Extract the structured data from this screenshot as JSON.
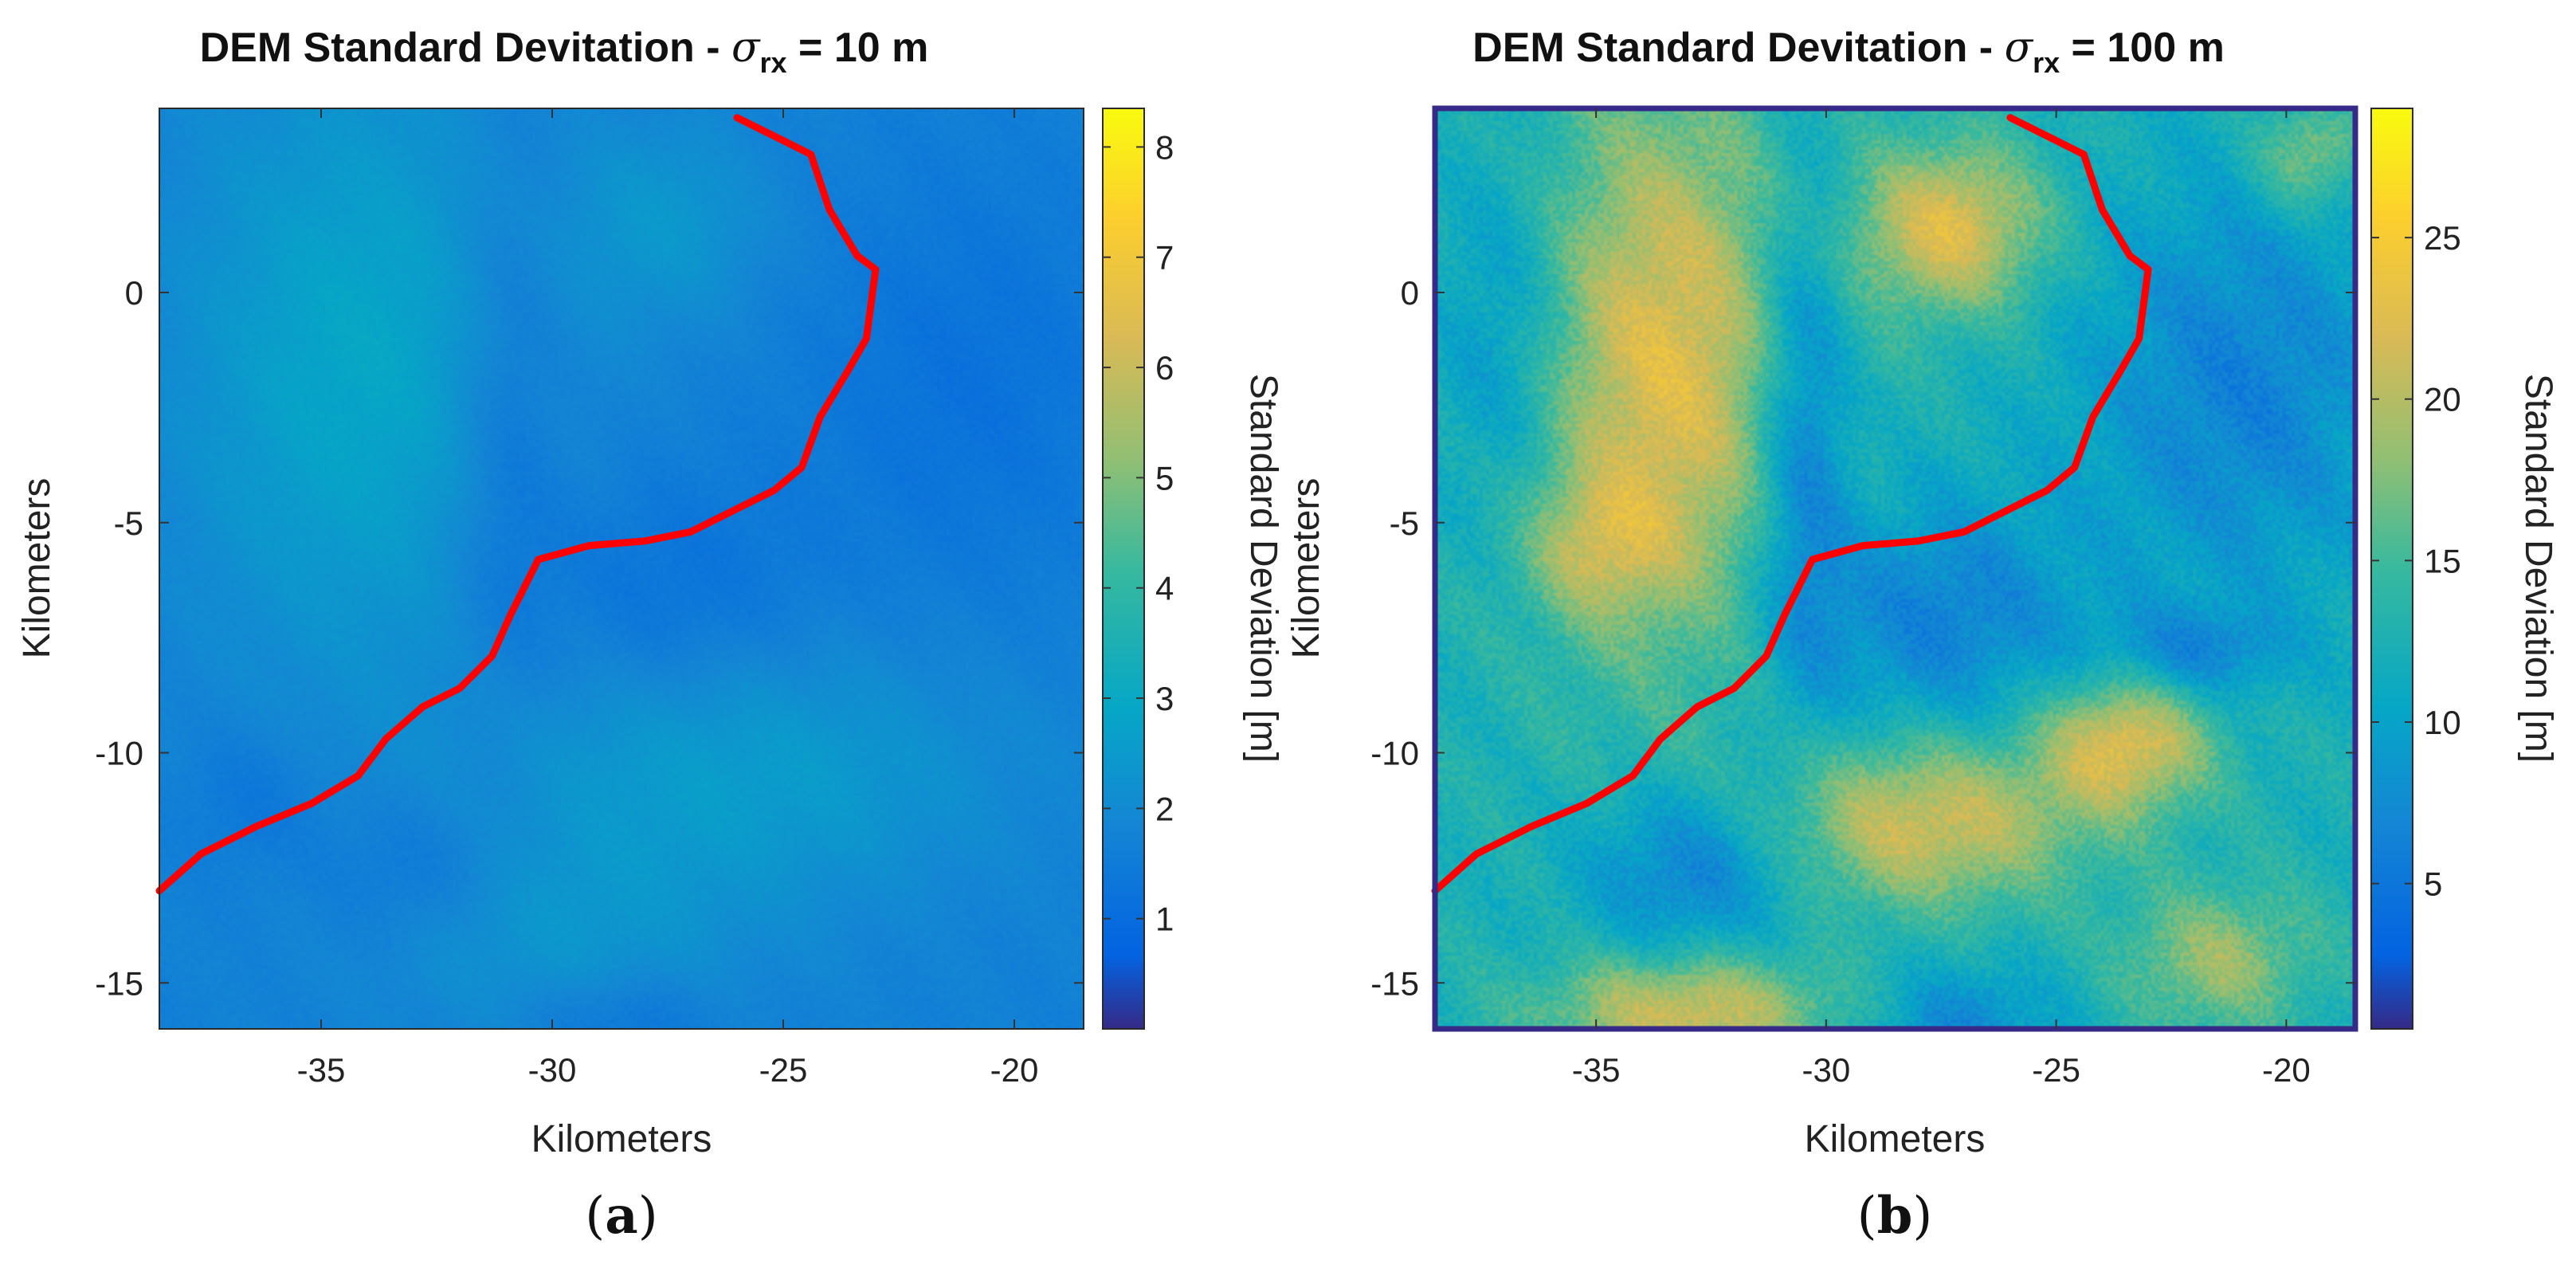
{
  "chart_data": [
    {
      "type": "heatmap",
      "panel_label": {
        "open": "(",
        "letter": "a",
        "close": ")"
      },
      "title": {
        "prefix": "DEM Standard Devitation - ",
        "symbol": "σ",
        "subscript": "rx",
        "suffix": " = 10 m"
      },
      "xlabel": "Kilometers",
      "ylabel": "Kilometers",
      "colorbar_label": "Standard Deviation [m]",
      "xlim": [
        -38.5,
        -18.5
      ],
      "ylim": [
        -16,
        4
      ],
      "xticks": [
        -35,
        -30,
        -25,
        -20
      ],
      "xtick_labels": [
        "-35",
        "-30",
        "-25",
        "-20"
      ],
      "yticks": [
        0,
        -5,
        -10,
        -15
      ],
      "ytick_labels": [
        "0",
        "-5",
        "-10",
        "-15"
      ],
      "clim": [
        0,
        8.35
      ],
      "cticks": [
        1,
        2,
        3,
        4,
        5,
        6,
        7,
        8
      ],
      "ctick_labels": [
        "1",
        "2",
        "3",
        "4",
        "5",
        "6",
        "7",
        "8"
      ],
      "colormap": "parula",
      "trace_color": "#ff0000",
      "path_label": "traverse path",
      "path_km": [
        [
          -38.5,
          -13
        ],
        [
          -37.6,
          -12.2
        ],
        [
          -36.4,
          -11.6
        ],
        [
          -35.2,
          -11.1
        ],
        [
          -34.2,
          -10.5
        ],
        [
          -33.6,
          -9.7
        ],
        [
          -32.8,
          -9.0
        ],
        [
          -32.0,
          -8.6
        ],
        [
          -31.3,
          -7.9
        ],
        [
          -30.9,
          -7.0
        ],
        [
          -30.3,
          -5.8
        ],
        [
          -29.2,
          -5.5
        ],
        [
          -28.0,
          -5.4
        ],
        [
          -27.0,
          -5.2
        ],
        [
          -26.0,
          -4.7
        ],
        [
          -25.2,
          -4.3
        ],
        [
          -24.6,
          -3.8
        ],
        [
          -24.2,
          -2.7
        ],
        [
          -23.6,
          -1.7
        ],
        [
          -23.2,
          -1.0
        ],
        [
          -23.0,
          0.5
        ],
        [
          -23.4,
          0.8
        ],
        [
          -24.0,
          1.8
        ],
        [
          -24.4,
          3.0
        ],
        [
          -25.0,
          3.3
        ],
        [
          -26.0,
          3.8
        ]
      ],
      "field": {
        "base": 1.7,
        "noise": 0.12,
        "highs": [
          [
            -34.2,
            -1.6,
            3.8,
            6.5,
            1.2
          ],
          [
            -27.5,
            1.5,
            2.2,
            2.2,
            0.7
          ],
          [
            -26.0,
            -10.5,
            5.5,
            2.8,
            0.9
          ],
          [
            -30.0,
            -14.0,
            4.0,
            2.2,
            0.6
          ]
        ],
        "lows": [
          [
            -31.0,
            -3.0,
            1.2,
            6.0,
            0.6
          ],
          [
            -27.5,
            -6.5,
            3.0,
            2.5,
            0.5
          ],
          [
            -21.0,
            -2.0,
            3.5,
            4.5,
            0.5
          ],
          [
            -33.0,
            -12.6,
            2.0,
            1.6,
            0.5
          ],
          [
            -28.5,
            -15.8,
            2.0,
            1.0,
            0.5
          ],
          [
            -36.5,
            -11.0,
            1.5,
            1.5,
            0.4
          ]
        ]
      }
    },
    {
      "type": "heatmap",
      "panel_label": {
        "open": "(",
        "letter": "b",
        "close": ")"
      },
      "title": {
        "prefix": "DEM Standard Devitation - ",
        "symbol": "σ",
        "subscript": "rx",
        "suffix": " = 100 m"
      },
      "xlabel": "Kilometers",
      "ylabel": "Kilometers",
      "colorbar_label": "Standard Deviation [m]",
      "xlim": [
        -38.5,
        -18.5
      ],
      "ylim": [
        -16,
        4
      ],
      "xticks": [
        -35,
        -30,
        -25,
        -20
      ],
      "xtick_labels": [
        "-35",
        "-30",
        "-25",
        "-20"
      ],
      "yticks": [
        0,
        -5,
        -10,
        -15
      ],
      "ytick_labels": [
        "0",
        "-5",
        "-10",
        "-15"
      ],
      "clim": [
        0.5,
        29
      ],
      "cticks": [
        5,
        10,
        15,
        20,
        25
      ],
      "ctick_labels": [
        "5",
        "10",
        "15",
        "20",
        "25"
      ],
      "colormap": "parula",
      "trace_color": "#ff0000",
      "path_label": "traverse path",
      "path_km": [
        [
          -38.5,
          -13
        ],
        [
          -37.6,
          -12.2
        ],
        [
          -36.4,
          -11.6
        ],
        [
          -35.2,
          -11.1
        ],
        [
          -34.2,
          -10.5
        ],
        [
          -33.6,
          -9.7
        ],
        [
          -32.8,
          -9.0
        ],
        [
          -32.0,
          -8.6
        ],
        [
          -31.3,
          -7.9
        ],
        [
          -30.9,
          -7.0
        ],
        [
          -30.3,
          -5.8
        ],
        [
          -29.2,
          -5.5
        ],
        [
          -28.0,
          -5.4
        ],
        [
          -27.0,
          -5.2
        ],
        [
          -26.0,
          -4.7
        ],
        [
          -25.2,
          -4.3
        ],
        [
          -24.6,
          -3.8
        ],
        [
          -24.2,
          -2.7
        ],
        [
          -23.6,
          -1.7
        ],
        [
          -23.2,
          -1.0
        ],
        [
          -23.0,
          0.5
        ],
        [
          -23.4,
          0.8
        ],
        [
          -24.0,
          1.8
        ],
        [
          -24.4,
          3.0
        ],
        [
          -25.0,
          3.3
        ],
        [
          -26.0,
          3.8
        ]
      ],
      "field": {
        "base": 12.5,
        "noise": 1.6,
        "highs": [
          [
            -33.5,
            -1.6,
            2.8,
            6.0,
            10.0
          ],
          [
            -27.3,
            1.4,
            2.0,
            1.8,
            10.0
          ],
          [
            -27.8,
            -11.5,
            3.2,
            1.8,
            9.0
          ],
          [
            -23.5,
            -9.8,
            1.8,
            1.5,
            10.0
          ],
          [
            -35.0,
            -5.5,
            1.5,
            1.5,
            5.0
          ],
          [
            -33.0,
            -15.6,
            3.0,
            1.2,
            9.0
          ],
          [
            -21.5,
            -14.5,
            2.0,
            1.5,
            6.0
          ],
          [
            -19.5,
            3.0,
            1.2,
            1.2,
            6.0
          ]
        ],
        "lows": [
          [
            -30.5,
            -3.0,
            1.0,
            5.5,
            7.0
          ],
          [
            -27.5,
            -7.0,
            3.0,
            2.5,
            6.0
          ],
          [
            -21.0,
            -2.0,
            3.5,
            4.5,
            6.0
          ],
          [
            -37.0,
            -1.0,
            1.5,
            4.0,
            4.0
          ],
          [
            -33.0,
            -12.6,
            2.2,
            1.8,
            6.0
          ],
          [
            -27.0,
            -15.8,
            2.0,
            1.2,
            5.0
          ],
          [
            -22.0,
            -7.8,
            2.0,
            1.0,
            5.0
          ]
        ]
      }
    }
  ]
}
